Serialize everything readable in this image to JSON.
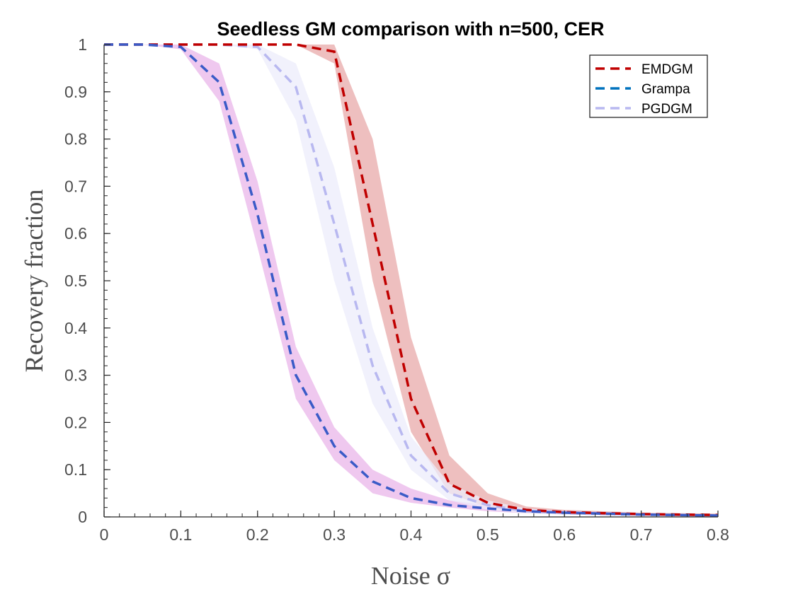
{
  "chart_data": {
    "type": "line",
    "title": "Seedless GM comparison with n=500, CER",
    "xlabel": "Noise σ",
    "ylabel": "Recovery fraction",
    "xlim": [
      0,
      0.8
    ],
    "ylim": [
      0,
      1
    ],
    "xticks": [
      "0",
      "0.1",
      "0.2",
      "0.3",
      "0.4",
      "0.5",
      "0.6",
      "0.7",
      "0.8"
    ],
    "yticks": [
      "0",
      "0.1",
      "0.2",
      "0.3",
      "0.4",
      "0.5",
      "0.6",
      "0.7",
      "0.8",
      "0.9",
      "1"
    ],
    "grid": false,
    "legend_position": "top-right",
    "x": [
      0,
      0.05,
      0.1,
      0.15,
      0.2,
      0.25,
      0.3,
      0.35,
      0.4,
      0.45,
      0.5,
      0.55,
      0.6,
      0.65,
      0.7,
      0.75,
      0.8
    ],
    "series": [
      {
        "name": "EMDGM",
        "color": "#c00000",
        "band_color": "#e8a9a9",
        "values": [
          1,
          1,
          1,
          1,
          1,
          1,
          0.985,
          0.62,
          0.25,
          0.07,
          0.03,
          0.015,
          0.01,
          0.008,
          0.006,
          0.005,
          0.004
        ],
        "lower": [
          1,
          1,
          1,
          1,
          1,
          1,
          0.96,
          0.5,
          0.18,
          0.05,
          0.02,
          0.01,
          0.007,
          0.005,
          0.004,
          0.003,
          0.002
        ],
        "upper": [
          1,
          1,
          1,
          1,
          1,
          1,
          1.0,
          0.8,
          0.38,
          0.13,
          0.05,
          0.022,
          0.015,
          0.012,
          0.009,
          0.008,
          0.007
        ]
      },
      {
        "name": "Grampa",
        "color": "#0072bd",
        "line_color": "#3a5bc7",
        "band_color": "#e9b5ea",
        "values": [
          1,
          1,
          0.995,
          0.92,
          0.64,
          0.3,
          0.15,
          0.075,
          0.04,
          0.025,
          0.018,
          0.012,
          0.009,
          0.007,
          0.005,
          0.004,
          0.003
        ],
        "lower": [
          1,
          1,
          0.99,
          0.88,
          0.57,
          0.25,
          0.12,
          0.05,
          0.03,
          0.02,
          0.012,
          0.008,
          0.006,
          0.004,
          0.003,
          0.002,
          0.002
        ],
        "upper": [
          1,
          1,
          1.0,
          0.96,
          0.71,
          0.36,
          0.19,
          0.1,
          0.06,
          0.035,
          0.025,
          0.017,
          0.013,
          0.01,
          0.008,
          0.006,
          0.005
        ]
      },
      {
        "name": "PGDGM",
        "color": "#b8b8f0",
        "band_color": "#ececfb",
        "values": [
          1,
          1,
          1,
          1,
          0.995,
          0.91,
          0.62,
          0.32,
          0.13,
          0.05,
          0.025,
          0.012,
          0.008,
          0.006,
          0.005,
          0.004,
          0.003
        ],
        "lower": [
          1,
          1,
          1,
          1,
          0.99,
          0.84,
          0.5,
          0.24,
          0.1,
          0.035,
          0.015,
          0.008,
          0.005,
          0.004,
          0.003,
          0.002,
          0.002
        ],
        "upper": [
          1,
          1,
          1,
          1,
          1.0,
          0.96,
          0.74,
          0.4,
          0.17,
          0.07,
          0.035,
          0.018,
          0.012,
          0.009,
          0.007,
          0.006,
          0.005
        ]
      }
    ]
  }
}
